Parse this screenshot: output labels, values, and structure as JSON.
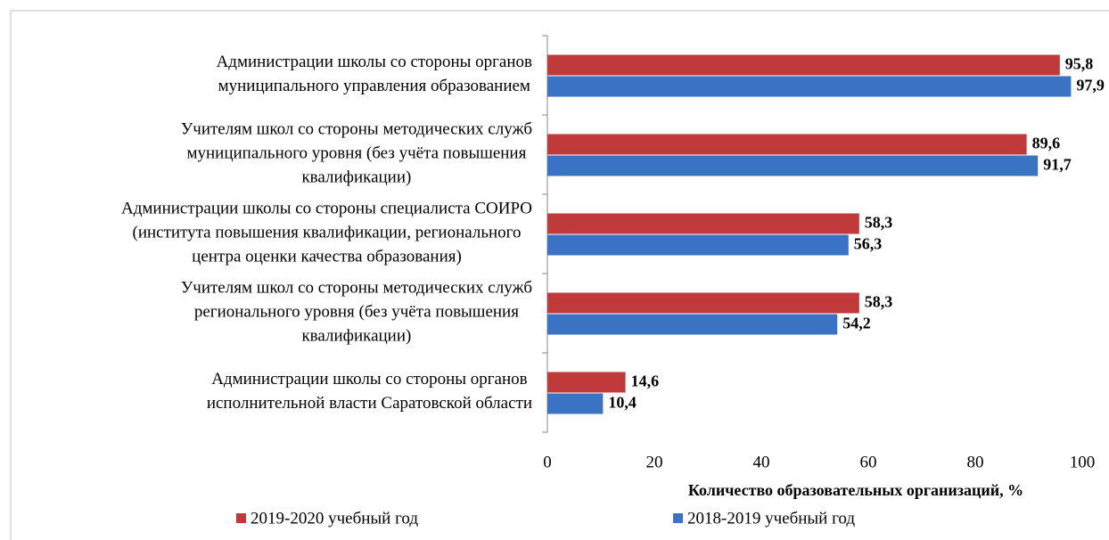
{
  "chart_data": {
    "type": "bar",
    "orientation": "horizontal",
    "categories": [
      "Администрации школы со стороны органов\nмуниципального управления образованием",
      "Учителям школ  со стороны методических служб\nмуниципального уровня (без учёта повышения\nквалификации)",
      "Администрации школы со стороны специалиста СОИРО\n(института повышения квалификации, регионального\nцентра оценки качества образования)",
      "Учителям школ  со стороны методических служб\nрегионального уровня (без учёта  повышения\nквалификации)",
      "Администрации школы со стороны органов\nисполнительной власти Саратовской области"
    ],
    "series": [
      {
        "name": "2019-2020 учебный год",
        "color": "#c0393b",
        "values": [
          95.8,
          89.6,
          58.3,
          58.3,
          14.6
        ],
        "value_labels": [
          "95,8",
          "89,6",
          "58,3",
          "58,3",
          "14,6"
        ]
      },
      {
        "name": "2018-2019 учебный год",
        "color": "#3a72c4",
        "values": [
          97.9,
          91.7,
          56.3,
          54.2,
          10.4
        ],
        "value_labels": [
          "97,9",
          "91,7",
          "56,3",
          "54,2",
          "10,4"
        ]
      }
    ],
    "xlabel": "Количество образовательных организаций, %",
    "xlim": [
      0,
      100
    ],
    "xticks": [
      0,
      20,
      40,
      60,
      80,
      100
    ],
    "grid": false,
    "legend": "bottom"
  }
}
